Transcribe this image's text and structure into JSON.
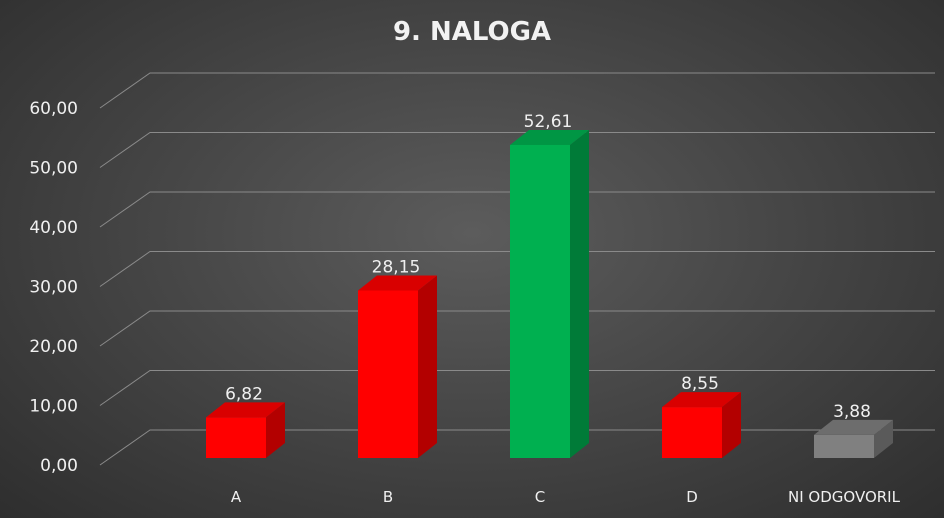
{
  "chart_data": {
    "type": "bar",
    "title": "9. NALOGA",
    "categories": [
      "A",
      "B",
      "C",
      "D",
      "NI ODGOVORIL"
    ],
    "values": [
      6.82,
      28.15,
      52.61,
      8.55,
      3.88
    ],
    "value_labels": [
      "6,82",
      "28,15",
      "52,61",
      "8,55",
      "3,88"
    ],
    "bar_colors": [
      "#ff0000",
      "#ff0000",
      "#00b050",
      "#ff0000",
      "#808080"
    ],
    "ylim": [
      0,
      60
    ],
    "yticks": [
      "0,00",
      "10,00",
      "20,00",
      "30,00",
      "40,00",
      "50,00",
      "60,00"
    ],
    "grid": true,
    "xlabel": "",
    "ylabel": ""
  }
}
